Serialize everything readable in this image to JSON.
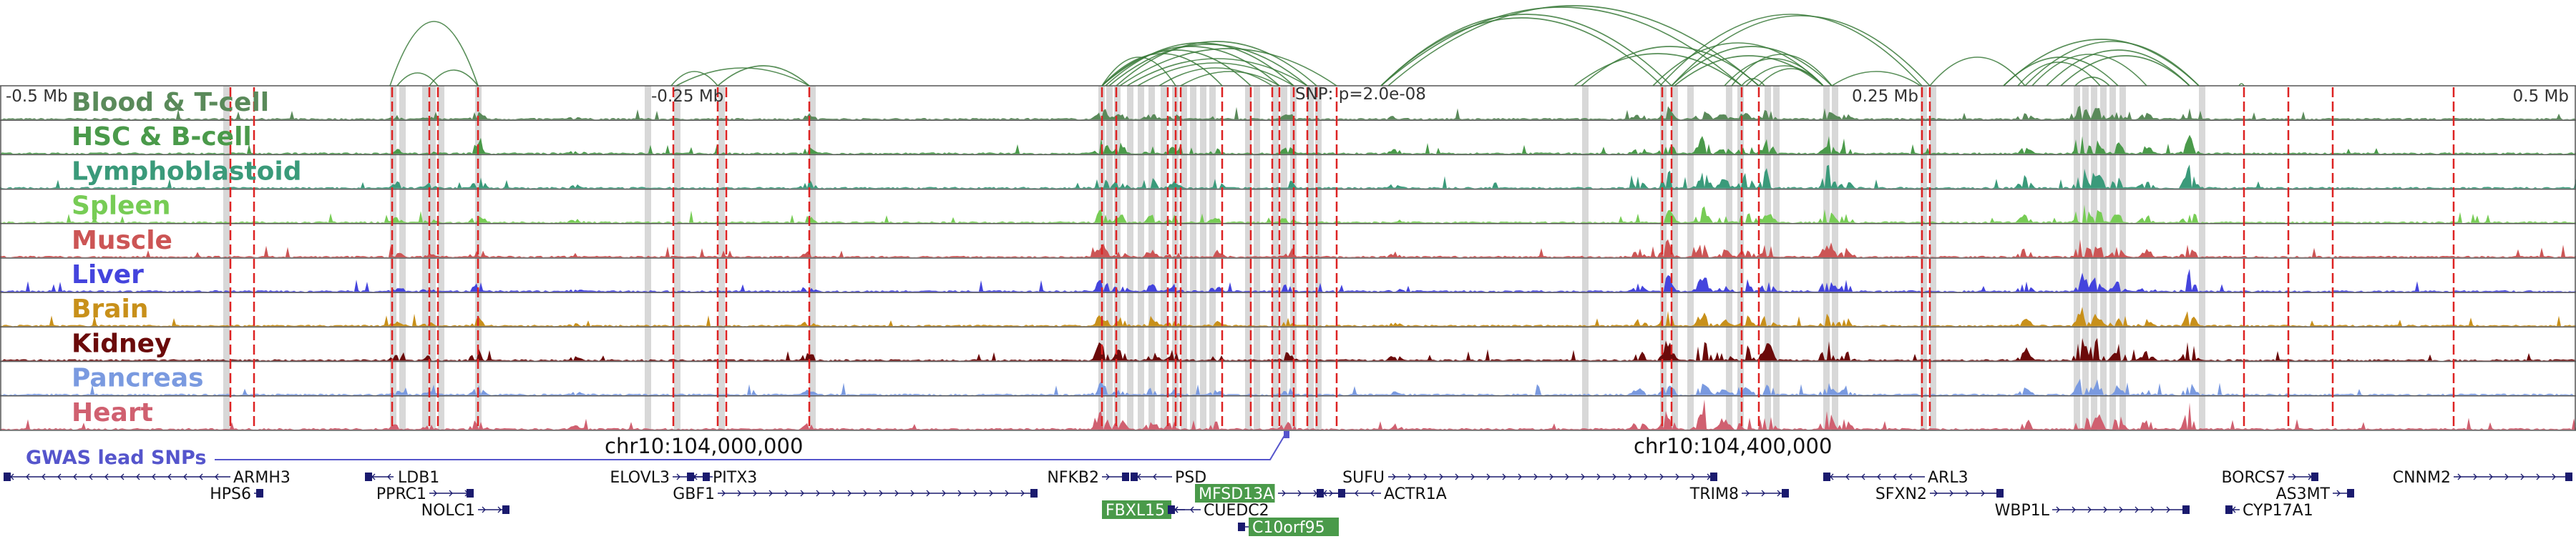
{
  "tracks": [
    {
      "label": "Blood & T-cell",
      "color": "#5a8a5a"
    },
    {
      "label": "HSC & B-cell",
      "color": "#4a9a4a"
    },
    {
      "label": "Lymphoblastoid",
      "color": "#3a9a7a"
    },
    {
      "label": "Spleen",
      "color": "#77cc55"
    },
    {
      "label": "Muscle",
      "color": "#cc5555"
    },
    {
      "label": "Liver",
      "color": "#4444dd"
    },
    {
      "label": "Brain",
      "color": "#c8901a"
    },
    {
      "label": "Kidney",
      "color": "#6b0a0a"
    },
    {
      "label": "Pancreas",
      "color": "#7a9ae0"
    },
    {
      "label": "Heart",
      "color": "#d06070"
    }
  ],
  "axis_labels": {
    "minus_half": "-0.5 Mb",
    "minus_quarter": "-0.25 Mb",
    "snp": "SNP: p=2.0e-08",
    "plus_quarter": "0.25 Mb",
    "plus_half": "0.5 Mb"
  },
  "gwas_label": "GWAS lead SNPs",
  "coordinates": {
    "left": "chr10:104,000,000",
    "right": "chr10:104,400,000"
  },
  "genes": [
    {
      "name": "ARMH3",
      "highlight": false
    },
    {
      "name": "HPS6",
      "highlight": false
    },
    {
      "name": "LDB1",
      "highlight": false
    },
    {
      "name": "PPRC1",
      "highlight": false
    },
    {
      "name": "NOLC1",
      "highlight": false
    },
    {
      "name": "ELOVL3",
      "highlight": false
    },
    {
      "name": "PITX3",
      "highlight": false
    },
    {
      "name": "GBF1",
      "highlight": false
    },
    {
      "name": "NFKB2",
      "highlight": false
    },
    {
      "name": "PSD",
      "highlight": false
    },
    {
      "name": "MFSD13A",
      "highlight": true
    },
    {
      "name": "FBXL15",
      "highlight": true
    },
    {
      "name": "CUEDC2",
      "highlight": false
    },
    {
      "name": "C10orf95",
      "highlight": true
    },
    {
      "name": "SUFU",
      "highlight": false
    },
    {
      "name": "ACTR1A",
      "highlight": false
    },
    {
      "name": "TRIM8",
      "highlight": false
    },
    {
      "name": "ARL3",
      "highlight": false
    },
    {
      "name": "SFXN2",
      "highlight": false
    },
    {
      "name": "WBP1L",
      "highlight": false
    },
    {
      "name": "BORCS7",
      "highlight": false
    },
    {
      "name": "AS3MT",
      "highlight": false
    },
    {
      "name": "CYP17A1",
      "highlight": false
    },
    {
      "name": "CNNM2",
      "highlight": false
    }
  ],
  "colors": {
    "arc": "#3a7a3a",
    "snp_marker": "#dd2222",
    "highlight_band": "#d8d8d8",
    "gwas": "#5555cc",
    "gene": "#1a1a6e",
    "gene_highlight": "#4a9a4a"
  }
}
